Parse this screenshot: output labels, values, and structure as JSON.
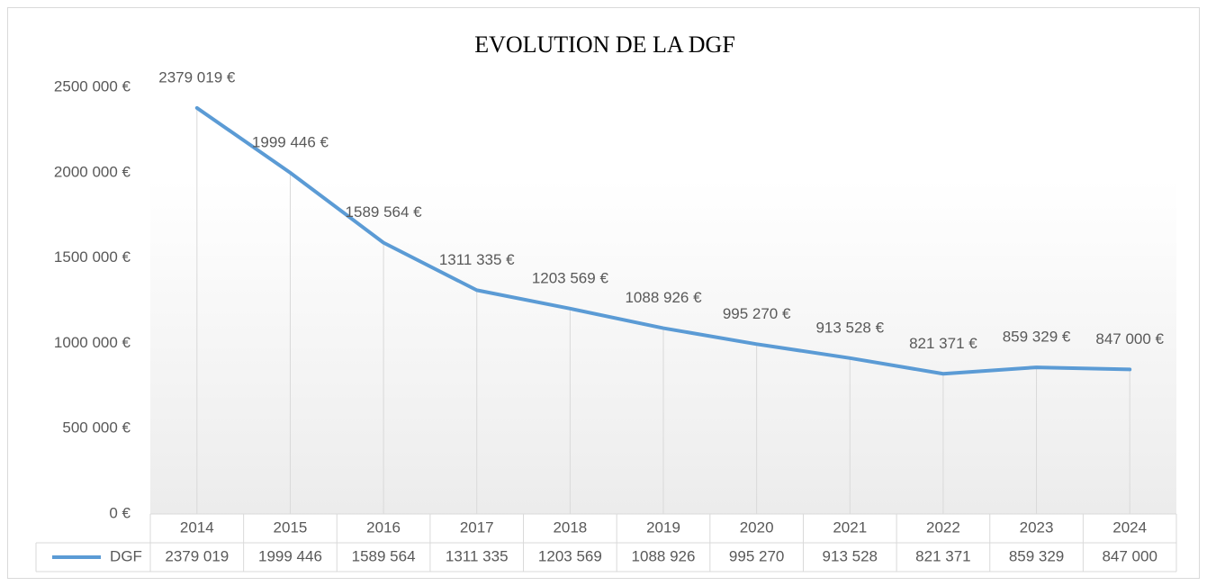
{
  "chart_data": {
    "type": "line",
    "title": "EVOLUTION DE LA DGF",
    "categories": [
      "2014",
      "2015",
      "2016",
      "2017",
      "2018",
      "2019",
      "2020",
      "2021",
      "2022",
      "2023",
      "2024"
    ],
    "series": [
      {
        "name": "DGF",
        "color": "#5b9bd5",
        "values": [
          2379019,
          1999446,
          1589564,
          1311335,
          1203569,
          1088926,
          995270,
          913528,
          821371,
          859329,
          847000
        ],
        "value_labels": [
          "2379 019 €",
          "1999 446 €",
          "1589 564 €",
          "1311 335 €",
          "1203 569 €",
          "1088 926 €",
          "995 270 €",
          "913 528 €",
          "821 371 €",
          "859 329 €",
          "847 000 €"
        ],
        "table_labels": [
          "2379 019",
          "1999 446",
          "1589 564",
          "1311 335",
          "1203 569",
          "1088 926",
          "995 270",
          "913 528",
          "821 371",
          "859 329",
          "847 000"
        ]
      }
    ],
    "ylim": [
      0,
      2500000
    ],
    "yticks": [
      {
        "value": 0,
        "label": "0 €"
      },
      {
        "value": 500000,
        "label": "500 000 €"
      },
      {
        "value": 1000000,
        "label": "1000 000 €"
      },
      {
        "value": 1500000,
        "label": "1500 000 €"
      },
      {
        "value": 2000000,
        "label": "2000 000 €"
      },
      {
        "value": 2500000,
        "label": "2500 000 €"
      }
    ],
    "drop_lines": true
  }
}
